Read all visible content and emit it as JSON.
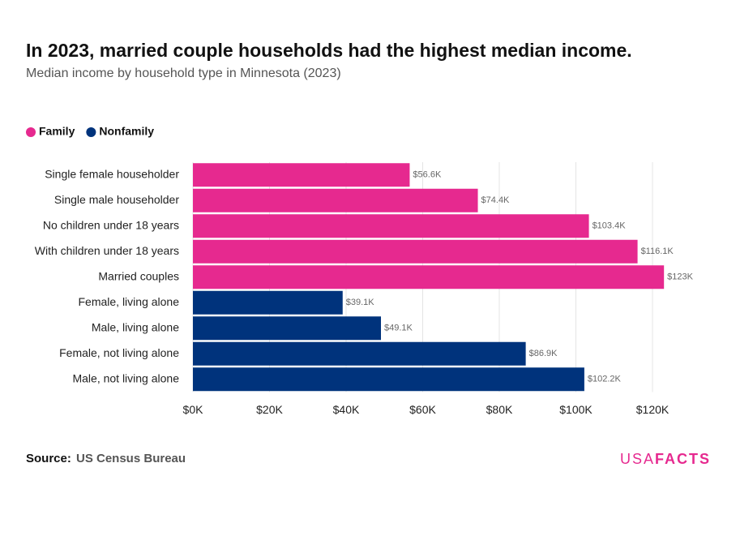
{
  "chart_data": {
    "type": "hbar",
    "title": "In 2023, married couple households had the highest median income.",
    "subtitle": "Median income by household type in Minnesota (2023)",
    "categories": [
      "Single female householder",
      "Single male householder",
      "No children under 18 years",
      "With children under 18 years",
      "Married couples",
      "Female, living alone",
      "Male, living alone",
      "Female, not living alone",
      "Male, not living alone"
    ],
    "series": [
      {
        "name": "Family",
        "color": "#e6298f",
        "values": [
          56600,
          74400,
          103400,
          116100,
          123000,
          null,
          null,
          null,
          null
        ],
        "value_labels": [
          "$56.6K",
          "$74.4K",
          "$103.4K",
          "$116.1K",
          "$123K",
          null,
          null,
          null,
          null
        ]
      },
      {
        "name": "Nonfamily",
        "color": "#00337c",
        "values": [
          null,
          null,
          null,
          null,
          null,
          39100,
          49100,
          86900,
          102200
        ],
        "value_labels": [
          null,
          null,
          null,
          null,
          null,
          "$39.1K",
          "$49.1K",
          "$86.9K",
          "$102.2K"
        ]
      }
    ],
    "xlim": [
      0,
      120000
    ],
    "xticks": [
      {
        "value": 0,
        "label": "$0K"
      },
      {
        "value": 20000,
        "label": "$20K"
      },
      {
        "value": 40000,
        "label": "$40K"
      },
      {
        "value": 60000,
        "label": "$60K"
      },
      {
        "value": 80000,
        "label": "$80K"
      },
      {
        "value": 100000,
        "label": "$100K"
      },
      {
        "value": 120000,
        "label": "$120K"
      }
    ],
    "grid": true,
    "legend": "top-left",
    "source_label": "Source:",
    "source": "US Census Bureau",
    "logo": {
      "light": "USA",
      "bold": "FACTS"
    }
  }
}
